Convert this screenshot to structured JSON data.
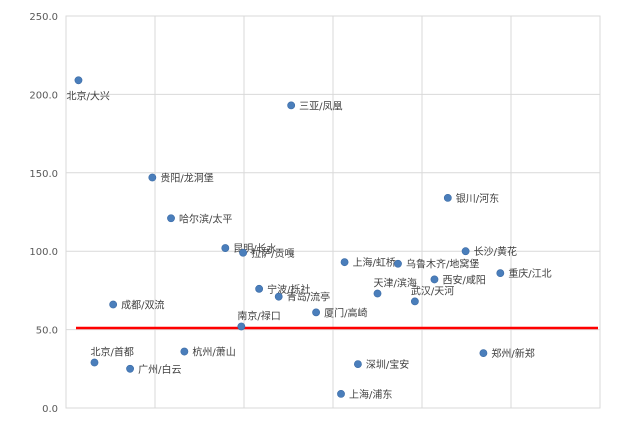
{
  "chart_data": {
    "type": "scatter",
    "title": "",
    "xlabel": "",
    "ylabel": "",
    "ylim": [
      0,
      250
    ],
    "yticks": [
      "0.0",
      "50.0",
      "100.0",
      "150.0",
      "200.0",
      "250.0"
    ],
    "xgrid_count": 6,
    "grid": true,
    "marker_color": "#4a7ebb",
    "reference_line": {
      "y": 51,
      "color": "#ff0000"
    },
    "points": [
      {
        "label": "北京/大兴",
        "x": 0.14,
        "y": 209,
        "label_side": "below"
      },
      {
        "label": "三亚/凤凰",
        "x": 2.53,
        "y": 193,
        "label_side": "right"
      },
      {
        "label": "贵阳/龙洞堡",
        "x": 0.97,
        "y": 147,
        "label_side": "right"
      },
      {
        "label": "银川/河东",
        "x": 4.29,
        "y": 134,
        "label_side": "right"
      },
      {
        "label": "哈尔滨/太平",
        "x": 1.18,
        "y": 121,
        "label_side": "right"
      },
      {
        "label": "昆明/长水",
        "x": 1.79,
        "y": 102,
        "label_side": "right"
      },
      {
        "label": "长沙/黄花",
        "x": 4.49,
        "y": 100,
        "label_side": "right"
      },
      {
        "label": "拉萨/贡嘎",
        "x": 1.99,
        "y": 99,
        "label_side": "right"
      },
      {
        "label": "上海/虹桥",
        "x": 3.13,
        "y": 93,
        "label_side": "right"
      },
      {
        "label": "乌鲁木齐/地窝堡",
        "x": 3.73,
        "y": 92,
        "label_side": "right"
      },
      {
        "label": "重庆/江北",
        "x": 4.88,
        "y": 86,
        "label_side": "right"
      },
      {
        "label": "西安/咸阳",
        "x": 4.14,
        "y": 82,
        "label_side": "right"
      },
      {
        "label": "宁波/栎社",
        "x": 2.17,
        "y": 76,
        "label_side": "right"
      },
      {
        "label": "天津/滨海",
        "x": 3.5,
        "y": 73,
        "label_side": "above"
      },
      {
        "label": "青岛/流亭",
        "x": 2.39,
        "y": 71,
        "label_side": "right"
      },
      {
        "label": "武汉/天河",
        "x": 3.92,
        "y": 68,
        "label_side": "above"
      },
      {
        "label": "成都/双流",
        "x": 0.53,
        "y": 66,
        "label_side": "right"
      },
      {
        "label": "厦门/高崎",
        "x": 2.81,
        "y": 61,
        "label_side": "right"
      },
      {
        "label": "南京/禄口",
        "x": 1.97,
        "y": 52,
        "label_side": "above"
      },
      {
        "label": "杭州/萧山",
        "x": 1.33,
        "y": 36,
        "label_side": "right"
      },
      {
        "label": "郑州/新郑",
        "x": 4.69,
        "y": 35,
        "label_side": "right"
      },
      {
        "label": "北京/首都",
        "x": 0.32,
        "y": 29,
        "label_side": "above"
      },
      {
        "label": "深圳/宝安",
        "x": 3.28,
        "y": 28,
        "label_side": "right"
      },
      {
        "label": "广州/白云",
        "x": 0.72,
        "y": 25,
        "label_side": "right"
      },
      {
        "label": "上海/浦东",
        "x": 3.09,
        "y": 9,
        "label_side": "right"
      }
    ]
  }
}
